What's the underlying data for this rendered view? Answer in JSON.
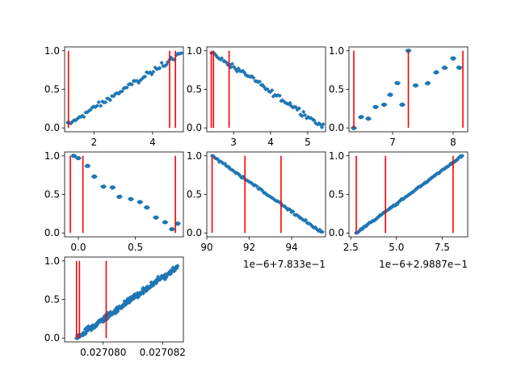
{
  "colors": {
    "marker": "#1f77b4",
    "vline": "#ff0000",
    "axis": "#000000",
    "background": "#ffffff"
  },
  "chart_data": [
    {
      "type": "scatter",
      "panel": 1,
      "pattern": "linear_noisy_up",
      "xlim": [
        1.0,
        5.05
      ],
      "ylim": [
        -0.05,
        1.05
      ],
      "xticks": [
        2,
        4
      ],
      "xtick_labels": [
        "2",
        "4"
      ],
      "yticks": [
        0.0,
        0.5,
        1.0
      ],
      "ytick_labels": [
        "0.0",
        "0.5",
        "1.0"
      ],
      "vlines": [
        1.13,
        4.58,
        4.78
      ],
      "x_range": [
        1.1,
        4.98
      ],
      "y_range": [
        0.04,
        0.97
      ],
      "noise": 0.05,
      "n_points": 70,
      "offset_text": ""
    },
    {
      "type": "scatter",
      "panel": 2,
      "pattern": "linear_noisy_down",
      "xlim": [
        2.28,
        5.48
      ],
      "ylim": [
        -0.05,
        1.05
      ],
      "xticks": [
        3,
        4,
        5
      ],
      "xtick_labels": [
        "3",
        "4",
        "5"
      ],
      "yticks": [
        0.0,
        0.5,
        1.0
      ],
      "ytick_labels": [
        "0.0",
        "0.5",
        "1.0"
      ],
      "vlines": [
        2.4,
        2.46,
        2.88
      ],
      "x_range": [
        2.4,
        5.42
      ],
      "y_range": [
        0.98,
        0.02
      ],
      "noise": 0.05,
      "n_points": 75,
      "offset_text": ""
    },
    {
      "type": "scatter",
      "panel": 3,
      "pattern": "stepped_up",
      "xlim": [
        6.28,
        8.24
      ],
      "ylim": [
        -0.05,
        1.05
      ],
      "xticks": [
        7,
        8
      ],
      "xtick_labels": [
        "7",
        "8"
      ],
      "yticks": [
        0.0,
        0.5,
        1.0
      ],
      "ytick_labels": [
        "0.0",
        "0.5",
        "1.0"
      ],
      "vlines": [
        6.36,
        7.26,
        8.16
      ],
      "clusters": [
        {
          "x": 6.36,
          "y": 0.0
        },
        {
          "x": 6.48,
          "y": 0.14
        },
        {
          "x": 6.6,
          "y": 0.12
        },
        {
          "x": 6.72,
          "y": 0.27
        },
        {
          "x": 6.86,
          "y": 0.3
        },
        {
          "x": 6.96,
          "y": 0.43
        },
        {
          "x": 7.08,
          "y": 0.58
        },
        {
          "x": 7.16,
          "y": 0.3
        },
        {
          "x": 7.26,
          "y": 1.0
        },
        {
          "x": 7.38,
          "y": 0.55
        },
        {
          "x": 7.58,
          "y": 0.58
        },
        {
          "x": 7.72,
          "y": 0.72
        },
        {
          "x": 7.86,
          "y": 0.78
        },
        {
          "x": 8.0,
          "y": 0.9
        },
        {
          "x": 8.1,
          "y": 0.78
        }
      ],
      "offset_text": ""
    },
    {
      "type": "scatter",
      "panel": 4,
      "pattern": "stepped_down",
      "xlim": [
        -0.12,
        0.92
      ],
      "ylim": [
        -0.05,
        1.05
      ],
      "xticks": [
        0.0,
        0.5
      ],
      "xtick_labels": [
        "0.0",
        "0.5"
      ],
      "yticks": [
        0.0,
        0.5,
        1.0
      ],
      "ytick_labels": [
        "0.0",
        "0.5",
        "1.0"
      ],
      "vlines": [
        -0.07,
        0.04,
        0.85
      ],
      "clusters": [
        {
          "x": -0.04,
          "y": 1.0
        },
        {
          "x": 0.0,
          "y": 0.97
        },
        {
          "x": 0.08,
          "y": 0.87
        },
        {
          "x": 0.14,
          "y": 0.73
        },
        {
          "x": 0.22,
          "y": 0.6
        },
        {
          "x": 0.3,
          "y": 0.59
        },
        {
          "x": 0.36,
          "y": 0.47
        },
        {
          "x": 0.46,
          "y": 0.44
        },
        {
          "x": 0.54,
          "y": 0.4
        },
        {
          "x": 0.6,
          "y": 0.33
        },
        {
          "x": 0.68,
          "y": 0.2
        },
        {
          "x": 0.76,
          "y": 0.14
        },
        {
          "x": 0.82,
          "y": 0.05
        },
        {
          "x": 0.87,
          "y": 0.12
        }
      ],
      "offset_text": ""
    },
    {
      "type": "scatter",
      "panel": 5,
      "pattern": "linear_noisy_down",
      "xlim": [
        90.0,
        95.6
      ],
      "ylim": [
        -0.05,
        1.05
      ],
      "xticks": [
        90,
        92,
        94
      ],
      "xtick_labels": [
        "90",
        "92",
        "94"
      ],
      "yticks": [
        0.0,
        0.5,
        1.0
      ],
      "ytick_labels": [
        "0.0",
        "0.5",
        "1.0"
      ],
      "vlines": [
        90.25,
        91.8,
        93.5
      ],
      "x_range": [
        90.25,
        95.45
      ],
      "y_range": [
        1.0,
        0.0
      ],
      "noise": 0.025,
      "n_points": 80,
      "offset_text": "1e−6+7.833e−1"
    },
    {
      "type": "scatter",
      "panel": 6,
      "pattern": "linear_tight_up",
      "xlim": [
        2.4,
        8.9
      ],
      "ylim": [
        -0.05,
        1.05
      ],
      "xticks": [
        2.5,
        5.0,
        7.5
      ],
      "xtick_labels": [
        "2.5",
        "5.0",
        "7.5"
      ],
      "yticks": [
        0.0,
        0.5,
        1.0
      ],
      "ytick_labels": [
        "0.0",
        "0.5",
        "1.0"
      ],
      "vlines": [
        2.8,
        4.4,
        8.1
      ],
      "x_range": [
        2.8,
        8.6
      ],
      "y_range": [
        0.0,
        1.0
      ],
      "noise": 0.015,
      "n_points": 120,
      "offset_text": "1e−6+2.9887e−1"
    },
    {
      "type": "scatter",
      "panel": 7,
      "pattern": "linear_dense_up",
      "xlim": [
        0.0270787,
        0.0270827
      ],
      "ylim": [
        -0.05,
        1.05
      ],
      "xticks": [
        0.02708,
        0.027082
      ],
      "xtick_labels": [
        "0.027080",
        "0.027082"
      ],
      "yticks": [
        0.0,
        0.5,
        1.0
      ],
      "ytick_labels": [
        "0.0",
        "0.5",
        "1.0"
      ],
      "vlines": [
        0.0270791,
        0.0270792,
        0.0270801
      ],
      "x_range": [
        0.0270791,
        0.0270825
      ],
      "y_range": [
        0.0,
        0.92
      ],
      "noise": 0.06,
      "n_points": 220,
      "offset_text": ""
    }
  ]
}
